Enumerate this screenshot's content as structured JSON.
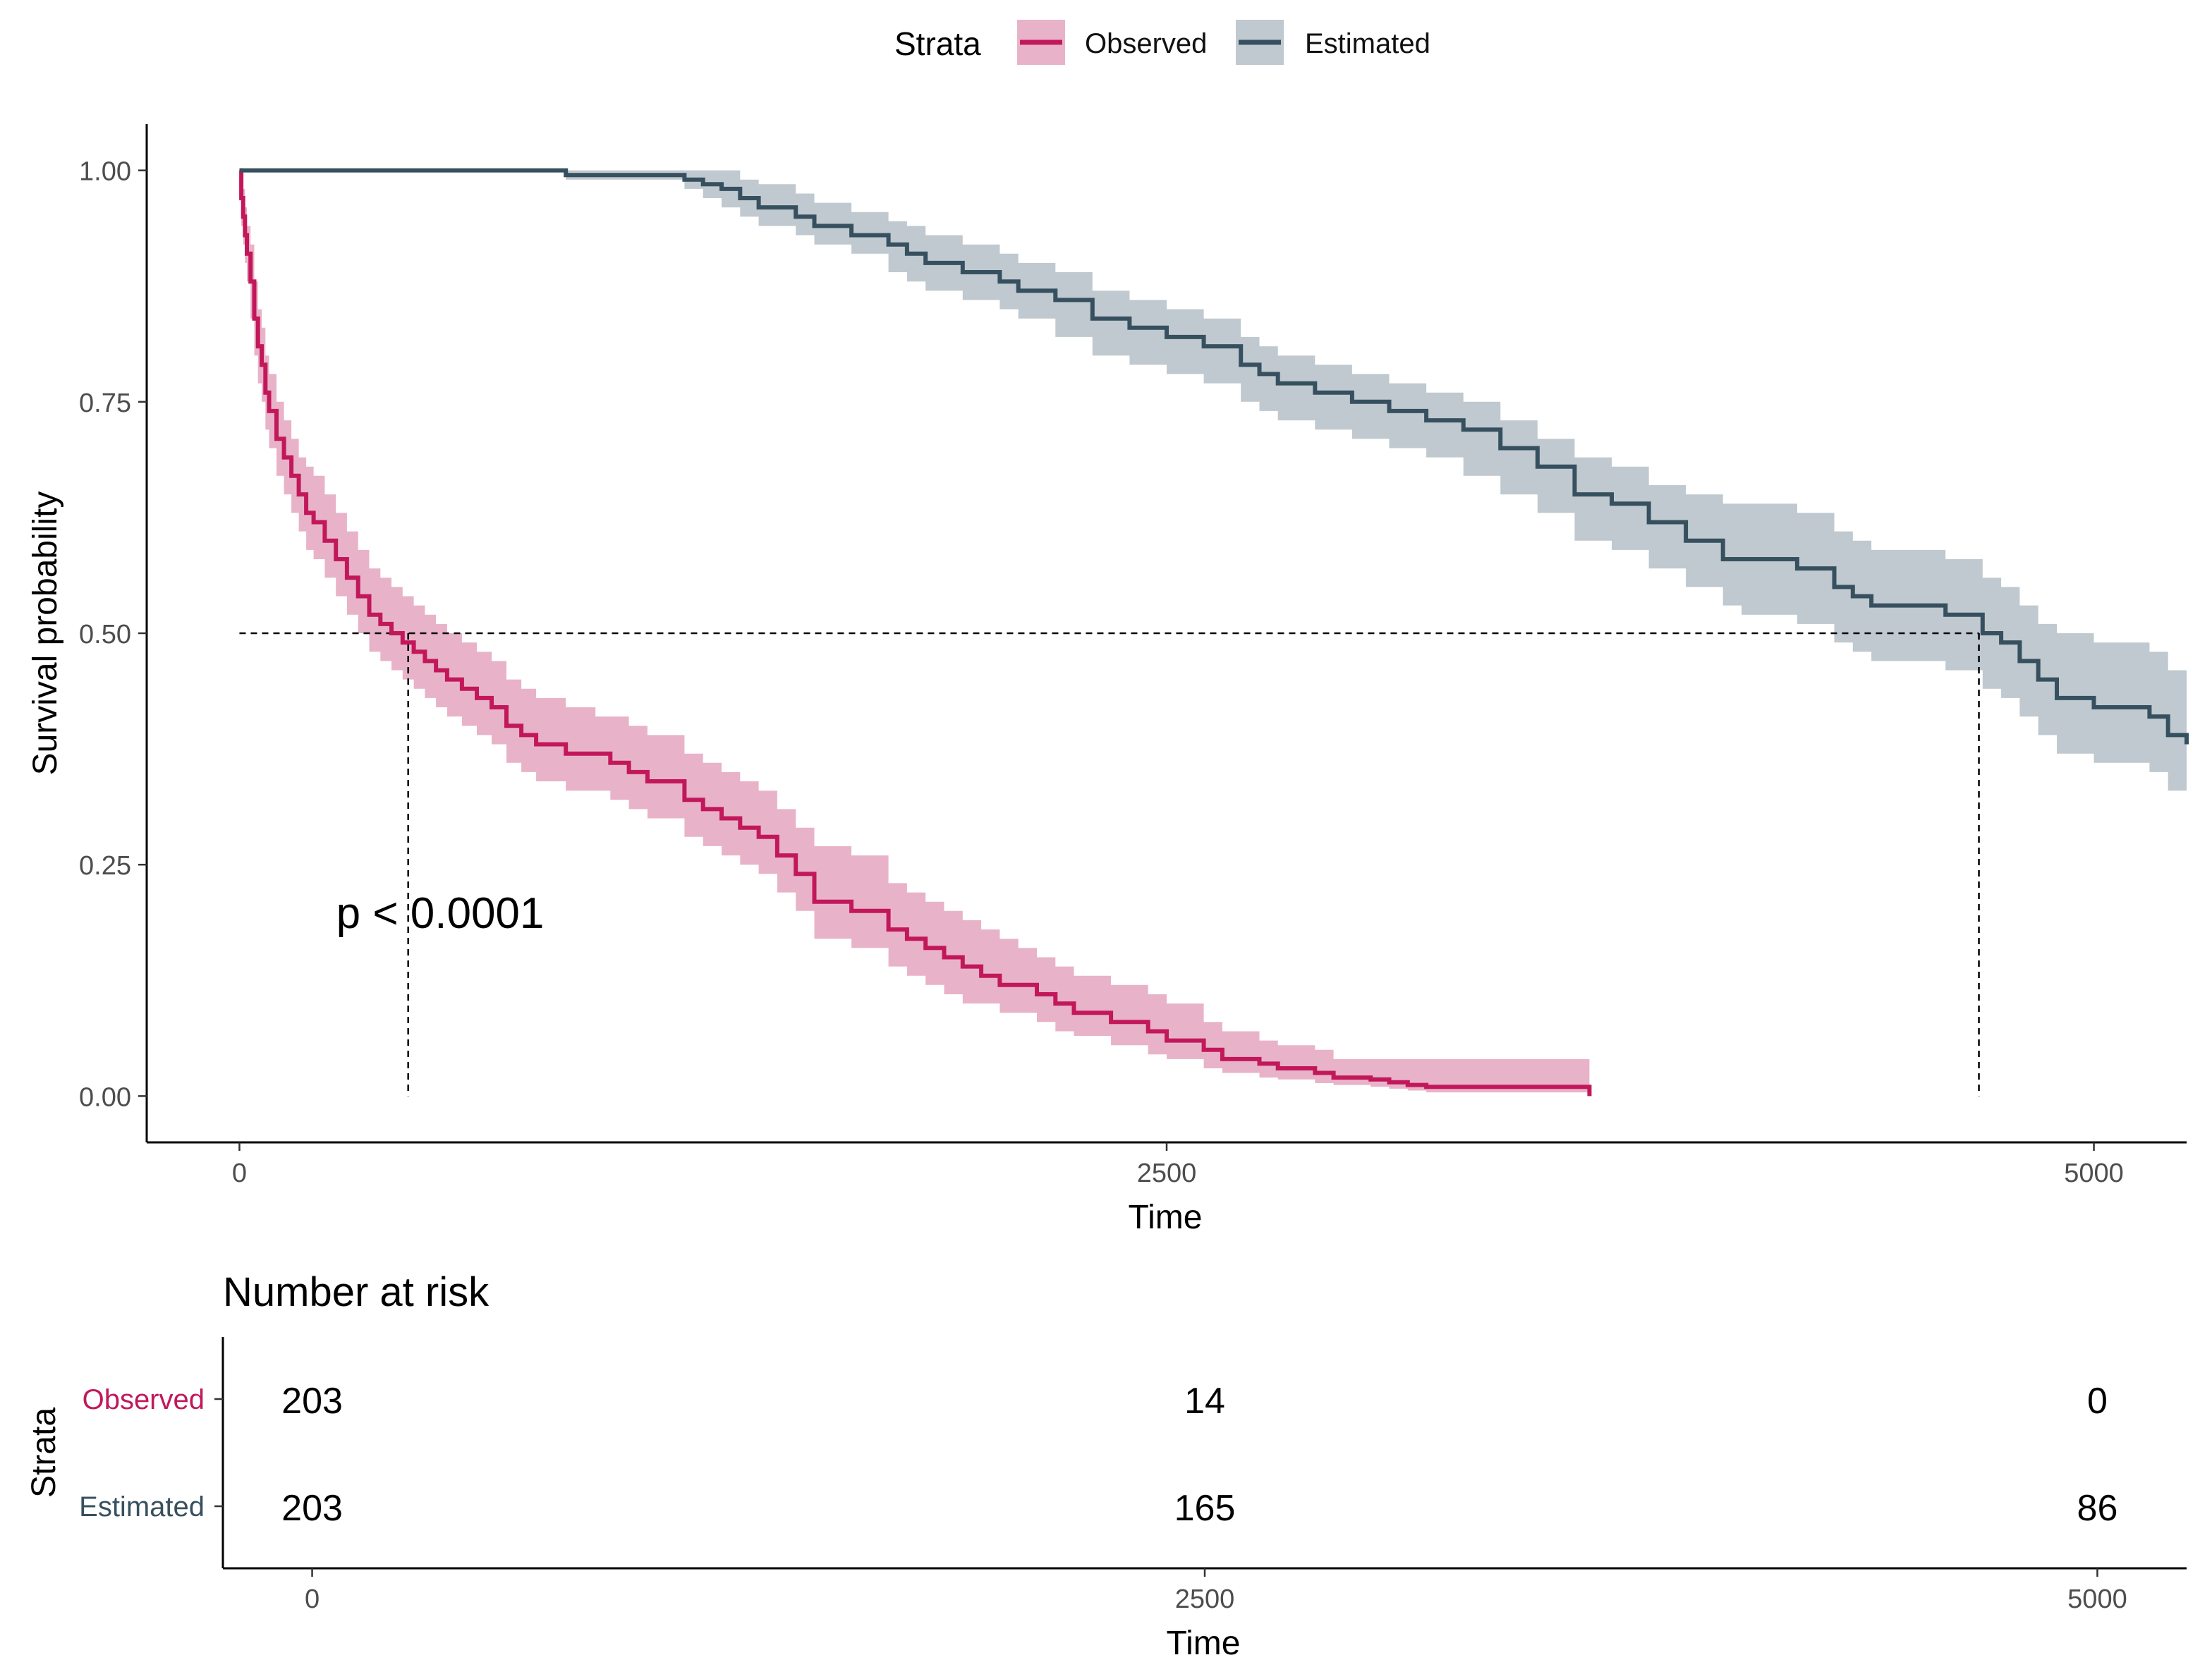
{
  "chart_data": [
    {
      "type": "line",
      "subtype": "kaplan-meier",
      "title": "",
      "xlabel": "Time",
      "ylabel": "Survival probability",
      "xlim": [
        -250,
        5250
      ],
      "ylim": [
        -0.05,
        1.05
      ],
      "x_ticks": [
        0,
        2500,
        5000
      ],
      "x_tick_labels": [
        "0",
        "2500",
        "5000"
      ],
      "y_ticks": [
        0,
        0.25,
        0.5,
        0.75,
        1.0
      ],
      "y_tick_labels": [
        "0.00",
        "0.25",
        "0.50",
        "0.75",
        "1.00"
      ],
      "grid": false,
      "legend": {
        "title": "Strata",
        "position": "top",
        "entries": [
          {
            "label": "Observed",
            "color": "#c2185b",
            "fill": "#e8b3c8"
          },
          {
            "label": "Estimated",
            "color": "#37505f",
            "fill": "#bfc9cf"
          }
        ]
      },
      "annotation": "p < 0.0001",
      "median_lines": [
        {
          "series": "Observed",
          "x": 455,
          "y": 0.5
        },
        {
          "series": "Estimated",
          "x": 4690,
          "y": 0.5
        }
      ],
      "series": [
        {
          "name": "Observed",
          "color": "#c2185b",
          "band_color": "#e8b3c8",
          "x": [
            0,
            5,
            10,
            15,
            20,
            30,
            40,
            50,
            60,
            70,
            80,
            100,
            120,
            140,
            160,
            180,
            200,
            230,
            260,
            290,
            320,
            350,
            380,
            410,
            440,
            470,
            500,
            530,
            560,
            600,
            640,
            680,
            720,
            760,
            800,
            840,
            880,
            920,
            960,
            1000,
            1050,
            1100,
            1200,
            1250,
            1300,
            1350,
            1400,
            1450,
            1500,
            1550,
            1600,
            1650,
            1700,
            1750,
            1800,
            1850,
            1900,
            1950,
            2000,
            2050,
            2100,
            2150,
            2200,
            2250,
            2300,
            2350,
            2400,
            2450,
            2500,
            2550,
            2600,
            2650,
            2700,
            2750,
            2800,
            2850,
            2900,
            2950,
            3000,
            3050,
            3100,
            3150,
            3200,
            3300,
            3350,
            3400,
            3450,
            3500,
            3550,
            3600,
            3640
          ],
          "values": [
            1.0,
            0.97,
            0.95,
            0.93,
            0.91,
            0.88,
            0.84,
            0.81,
            0.79,
            0.76,
            0.74,
            0.71,
            0.69,
            0.67,
            0.65,
            0.63,
            0.62,
            0.6,
            0.58,
            0.56,
            0.54,
            0.52,
            0.51,
            0.5,
            0.49,
            0.48,
            0.47,
            0.46,
            0.45,
            0.44,
            0.43,
            0.42,
            0.4,
            0.39,
            0.38,
            0.38,
            0.37,
            0.37,
            0.37,
            0.36,
            0.35,
            0.34,
            0.32,
            0.31,
            0.3,
            0.29,
            0.28,
            0.26,
            0.24,
            0.21,
            0.21,
            0.2,
            0.2,
            0.18,
            0.17,
            0.16,
            0.15,
            0.14,
            0.13,
            0.12,
            0.12,
            0.11,
            0.1,
            0.09,
            0.09,
            0.08,
            0.08,
            0.07,
            0.06,
            0.06,
            0.05,
            0.04,
            0.04,
            0.035,
            0.03,
            0.03,
            0.025,
            0.02,
            0.02,
            0.018,
            0.015,
            0.012,
            0.01,
            0.01,
            0.01,
            0.01,
            0.01,
            0.01,
            0.01,
            0.01,
            0.0
          ],
          "lower": [
            1.0,
            0.94,
            0.92,
            0.9,
            0.88,
            0.84,
            0.8,
            0.77,
            0.75,
            0.72,
            0.7,
            0.67,
            0.65,
            0.63,
            0.61,
            0.59,
            0.58,
            0.56,
            0.54,
            0.52,
            0.5,
            0.48,
            0.47,
            0.46,
            0.45,
            0.44,
            0.43,
            0.42,
            0.41,
            0.4,
            0.39,
            0.38,
            0.36,
            0.35,
            0.34,
            0.34,
            0.33,
            0.33,
            0.33,
            0.32,
            0.31,
            0.3,
            0.28,
            0.27,
            0.26,
            0.25,
            0.24,
            0.22,
            0.2,
            0.17,
            0.17,
            0.16,
            0.16,
            0.14,
            0.13,
            0.12,
            0.11,
            0.1,
            0.1,
            0.09,
            0.09,
            0.08,
            0.07,
            0.065,
            0.065,
            0.055,
            0.055,
            0.045,
            0.04,
            0.04,
            0.03,
            0.025,
            0.025,
            0.02,
            0.018,
            0.018,
            0.014,
            0.012,
            0.012,
            0.01,
            0.008,
            0.006,
            0.004,
            0.004,
            0.004,
            0.004,
            0.004,
            0.004,
            0.004,
            0.004,
            0.0
          ],
          "upper": [
            1.0,
            0.99,
            0.98,
            0.96,
            0.94,
            0.92,
            0.88,
            0.85,
            0.83,
            0.8,
            0.78,
            0.75,
            0.73,
            0.71,
            0.69,
            0.68,
            0.67,
            0.65,
            0.63,
            0.61,
            0.59,
            0.57,
            0.56,
            0.55,
            0.54,
            0.53,
            0.52,
            0.51,
            0.5,
            0.49,
            0.48,
            0.47,
            0.45,
            0.44,
            0.43,
            0.43,
            0.42,
            0.42,
            0.41,
            0.41,
            0.4,
            0.39,
            0.37,
            0.36,
            0.35,
            0.34,
            0.33,
            0.31,
            0.29,
            0.27,
            0.27,
            0.26,
            0.26,
            0.23,
            0.22,
            0.21,
            0.2,
            0.19,
            0.18,
            0.17,
            0.16,
            0.15,
            0.14,
            0.13,
            0.13,
            0.12,
            0.12,
            0.11,
            0.1,
            0.1,
            0.08,
            0.07,
            0.07,
            0.06,
            0.055,
            0.055,
            0.05,
            0.04,
            0.04,
            0.04,
            0.04,
            0.04,
            0.04,
            0.04,
            0.04,
            0.04,
            0.04,
            0.04,
            0.04,
            0.04,
            0.0
          ]
        },
        {
          "name": "Estimated",
          "color": "#37505f",
          "band_color": "#bfc9cf",
          "x": [
            0,
            500,
            800,
            880,
            1000,
            1120,
            1200,
            1250,
            1300,
            1350,
            1400,
            1500,
            1550,
            1650,
            1750,
            1800,
            1850,
            1950,
            2050,
            2100,
            2200,
            2300,
            2400,
            2500,
            2600,
            2700,
            2750,
            2800,
            2900,
            3000,
            3100,
            3200,
            3300,
            3400,
            3500,
            3600,
            3700,
            3800,
            3900,
            4000,
            4050,
            4200,
            4300,
            4350,
            4400,
            4500,
            4600,
            4700,
            4750,
            4800,
            4850,
            4900,
            4950,
            5000,
            5100,
            5150,
            5200,
            5250
          ],
          "values": [
            1.0,
            1.0,
            1.0,
            0.995,
            0.995,
            0.995,
            0.99,
            0.985,
            0.98,
            0.97,
            0.96,
            0.95,
            0.94,
            0.93,
            0.92,
            0.91,
            0.9,
            0.89,
            0.88,
            0.87,
            0.86,
            0.84,
            0.83,
            0.82,
            0.81,
            0.79,
            0.78,
            0.77,
            0.76,
            0.75,
            0.74,
            0.73,
            0.72,
            0.7,
            0.68,
            0.65,
            0.64,
            0.62,
            0.6,
            0.58,
            0.58,
            0.57,
            0.55,
            0.54,
            0.53,
            0.53,
            0.52,
            0.5,
            0.49,
            0.47,
            0.45,
            0.43,
            0.43,
            0.42,
            0.42,
            0.41,
            0.39,
            0.38
          ],
          "lower": [
            1.0,
            1.0,
            1.0,
            0.99,
            0.99,
            0.99,
            0.98,
            0.97,
            0.96,
            0.95,
            0.94,
            0.93,
            0.92,
            0.91,
            0.89,
            0.88,
            0.87,
            0.86,
            0.85,
            0.84,
            0.82,
            0.8,
            0.79,
            0.78,
            0.77,
            0.75,
            0.74,
            0.73,
            0.72,
            0.71,
            0.7,
            0.69,
            0.67,
            0.65,
            0.63,
            0.6,
            0.59,
            0.57,
            0.55,
            0.53,
            0.52,
            0.51,
            0.49,
            0.48,
            0.47,
            0.47,
            0.46,
            0.44,
            0.43,
            0.41,
            0.39,
            0.37,
            0.37,
            0.36,
            0.36,
            0.35,
            0.33,
            0.32
          ],
          "upper": [
            1.0,
            1.0,
            1.0,
            1.0,
            1.0,
            1.0,
            1.0,
            1.0,
            1.0,
            0.99,
            0.985,
            0.975,
            0.965,
            0.955,
            0.945,
            0.94,
            0.93,
            0.92,
            0.91,
            0.9,
            0.89,
            0.87,
            0.86,
            0.85,
            0.84,
            0.82,
            0.81,
            0.8,
            0.79,
            0.78,
            0.77,
            0.76,
            0.75,
            0.73,
            0.71,
            0.69,
            0.68,
            0.66,
            0.65,
            0.64,
            0.64,
            0.63,
            0.61,
            0.6,
            0.59,
            0.59,
            0.58,
            0.56,
            0.55,
            0.53,
            0.51,
            0.5,
            0.5,
            0.49,
            0.49,
            0.48,
            0.46,
            0.45
          ]
        }
      ]
    },
    {
      "type": "table",
      "title": "Number at risk",
      "xlabel": "Time",
      "ylabel": "Strata",
      "xlim": [
        -250,
        5250
      ],
      "x_ticks": [
        0,
        2500,
        5000
      ],
      "x_tick_labels": [
        "0",
        "2500",
        "5000"
      ],
      "rows": [
        {
          "label": "Observed",
          "color": "#c2185b",
          "times": [
            0,
            2500,
            5000
          ],
          "values": [
            "203",
            "14",
            "0"
          ]
        },
        {
          "label": "Estimated",
          "color": "#37505f",
          "times": [
            0,
            2500,
            5000
          ],
          "values": [
            "203",
            "165",
            "86"
          ]
        }
      ]
    }
  ]
}
